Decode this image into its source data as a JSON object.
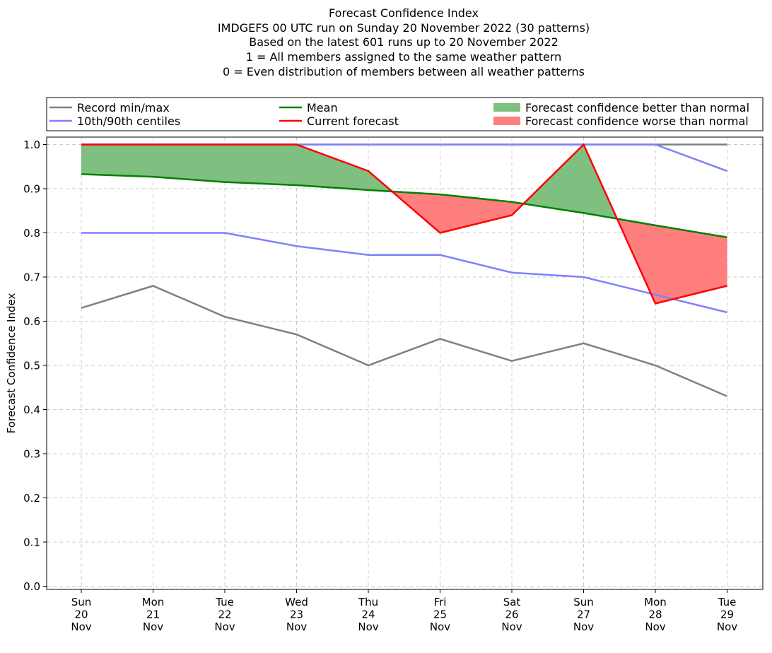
{
  "chart_data": {
    "type": "line",
    "title_lines": [
      "Forecast Confidence Index",
      "IMDGEFS 00 UTC run on Sunday 20 November 2022 (30 patterns)",
      "Based on the latest 601 runs up to 20 November 2022",
      "1 = All members assigned to the same weather pattern",
      "0 = Even distribution of members between all weather patterns"
    ],
    "ylabel": "Forecast Confidence Index",
    "xlabel": "",
    "ylim": [
      0,
      1.0
    ],
    "yticks": [
      "0.0",
      "0.1",
      "0.2",
      "0.3",
      "0.4",
      "0.5",
      "0.6",
      "0.7",
      "0.8",
      "0.9",
      "1.0"
    ],
    "categories": [
      [
        "Sun",
        "20",
        "Nov"
      ],
      [
        "Mon",
        "21",
        "Nov"
      ],
      [
        "Tue",
        "22",
        "Nov"
      ],
      [
        "Wed",
        "23",
        "Nov"
      ],
      [
        "Thu",
        "24",
        "Nov"
      ],
      [
        "Fri",
        "25",
        "Nov"
      ],
      [
        "Sat",
        "26",
        "Nov"
      ],
      [
        "Sun",
        "27",
        "Nov"
      ],
      [
        "Mon",
        "28",
        "Nov"
      ],
      [
        "Tue",
        "29",
        "Nov"
      ]
    ],
    "grid": true,
    "legend_placement": "top, above plot",
    "legend": [
      {
        "label": "Record min/max",
        "kind": "line",
        "color": "#808080"
      },
      {
        "label": "10th/90th centiles",
        "kind": "line",
        "color": "#8080ff"
      },
      {
        "label": "Mean",
        "kind": "line",
        "color": "#008000"
      },
      {
        "label": "Current forecast",
        "kind": "line",
        "color": "#ff0000"
      },
      {
        "label": "Forecast confidence better than normal",
        "kind": "fill",
        "color": "#7fbf7f"
      },
      {
        "label": "Forecast confidence worse than normal",
        "kind": "fill",
        "color": "#ff7f7f"
      }
    ],
    "series": {
      "record_min": [
        0.63,
        0.68,
        0.61,
        0.57,
        0.5,
        0.56,
        0.51,
        0.55,
        0.5,
        0.43
      ],
      "record_max": [
        1.0,
        1.0,
        1.0,
        1.0,
        1.0,
        1.0,
        1.0,
        1.0,
        1.0,
        1.0
      ],
      "p10": [
        0.8,
        0.8,
        0.8,
        0.77,
        0.75,
        0.75,
        0.71,
        0.7,
        0.66,
        0.62
      ],
      "p90": [
        1.0,
        1.0,
        1.0,
        1.0,
        1.0,
        1.0,
        1.0,
        1.0,
        1.0,
        0.94
      ],
      "mean": [
        0.933,
        0.927,
        0.915,
        0.908,
        0.897,
        0.887,
        0.87,
        0.845,
        0.817,
        0.79
      ],
      "current": [
        1.0,
        1.0,
        1.0,
        1.0,
        0.94,
        0.8,
        0.84,
        1.0,
        0.64,
        0.68
      ]
    },
    "colors": {
      "record": "#808080",
      "centiles": "#8080ff",
      "mean": "#008000",
      "current": "#ff0000",
      "better": "#7fbf7f",
      "worse": "#ff7f7f"
    }
  }
}
